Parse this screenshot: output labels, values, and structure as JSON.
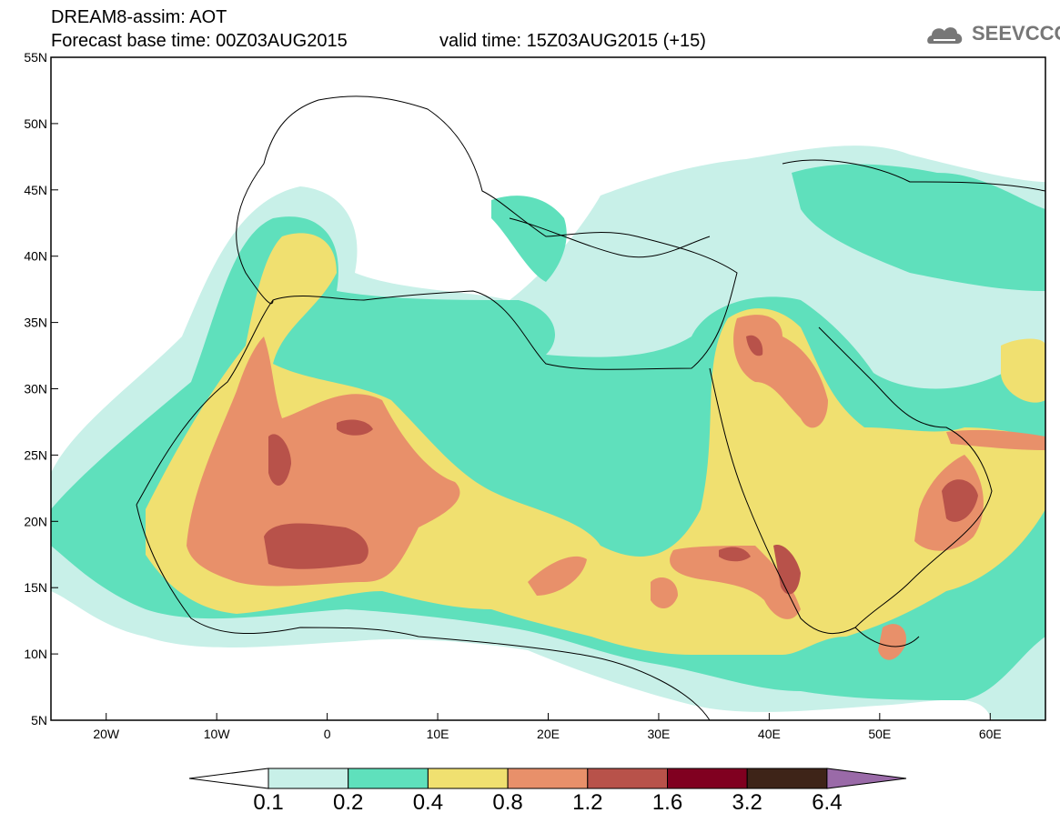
{
  "header": {
    "title": "DREAM8-assim: AOT",
    "base_time": "Forecast base time: 00Z03AUG2015",
    "valid_time": "valid time: 15Z03AUG2015 (+15)"
  },
  "logo": {
    "text": "SEEVCCC",
    "icon": "cloud-icon"
  },
  "map": {
    "lon_range": [
      -25,
      65
    ],
    "lat_range": [
      5,
      55
    ],
    "lat_labels": [
      "55N",
      "50N",
      "45N",
      "40N",
      "35N",
      "30N",
      "25N",
      "20N",
      "15N",
      "10N",
      "5N"
    ],
    "lon_labels": [
      "20W",
      "10W",
      "0",
      "10E",
      "20E",
      "30E",
      "40E",
      "50E",
      "60E"
    ]
  },
  "colorbar": {
    "labels": [
      "0.1",
      "0.2",
      "0.4",
      "0.8",
      "1.2",
      "1.6",
      "3.2",
      "6.4"
    ],
    "colors": [
      "#ffffff",
      "#c8f0e8",
      "#5fe0bc",
      "#f0e070",
      "#e8906a",
      "#b8524a",
      "#800020",
      "#3e2418",
      "#9a6aa8"
    ]
  }
}
